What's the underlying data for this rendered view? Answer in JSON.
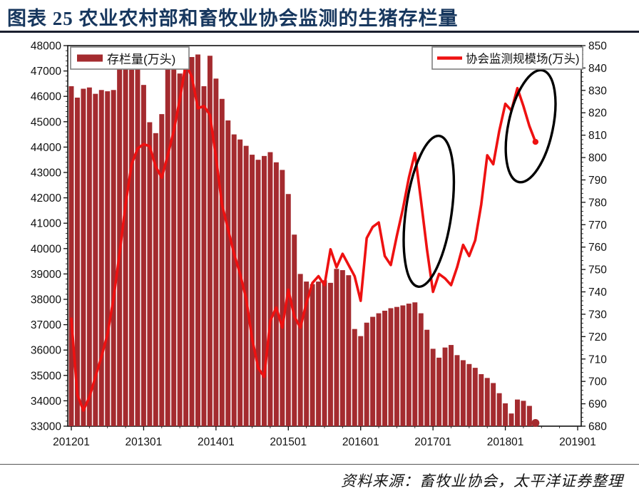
{
  "header": {
    "title": "图表 25 农业农村部和畜牧业协会监测的生猪存栏量"
  },
  "footer": {
    "source": "资料来源：畜牧业协会，太平洋证券整理"
  },
  "colors": {
    "bar": "#a42b2f",
    "line": "#ee1111",
    "title": "#17375e",
    "axis": "#111111",
    "annotation": "#000000",
    "legend_border": "#808080"
  },
  "chart_data": {
    "type": "bar+line",
    "title": "图表 25 农业农村部和畜牧业协会监测的生猪存栏量",
    "legend": [
      {
        "name": "存栏量(万头)",
        "type": "bar",
        "axis": "left"
      },
      {
        "name": "协会监测规模场(万头)",
        "type": "line",
        "axis": "right"
      }
    ],
    "left_axis": {
      "min": 33000,
      "max": 48000,
      "step": 1000,
      "minor_step": 200,
      "ticks": [
        "48000",
        "47000",
        "46000",
        "45000",
        "44000",
        "43000",
        "42000",
        "41000",
        "40000",
        "39000",
        "38000",
        "37000",
        "36000",
        "35000",
        "34000",
        "33000"
      ]
    },
    "right_axis": {
      "min": 680,
      "max": 850,
      "step": 10,
      "minor_step": 2,
      "ticks": [
        "850",
        "840",
        "830",
        "820",
        "810",
        "800",
        "790",
        "780",
        "770",
        "760",
        "750",
        "740",
        "730",
        "720",
        "710",
        "700",
        "690",
        "680"
      ]
    },
    "x_axis": {
      "tick_labels": [
        "201201",
        "201301",
        "201401",
        "201501",
        "201601",
        "201701",
        "201801",
        "201901"
      ],
      "months_span": 84,
      "minor_every_months": 3
    },
    "months": [
      "2012-01",
      "2012-02",
      "2012-03",
      "2012-04",
      "2012-05",
      "2012-06",
      "2012-07",
      "2012-08",
      "2012-09",
      "2012-10",
      "2012-11",
      "2012-12",
      "2013-01",
      "2013-02",
      "2013-03",
      "2013-04",
      "2013-05",
      "2013-06",
      "2013-07",
      "2013-08",
      "2013-09",
      "2013-10",
      "2013-11",
      "2013-12",
      "2014-01",
      "2014-02",
      "2014-03",
      "2014-04",
      "2014-05",
      "2014-06",
      "2014-07",
      "2014-08",
      "2014-09",
      "2014-10",
      "2014-11",
      "2014-12",
      "2015-01",
      "2015-02",
      "2015-03",
      "2015-04",
      "2015-05",
      "2015-06",
      "2015-07",
      "2015-08",
      "2015-09",
      "2015-10",
      "2015-11",
      "2015-12",
      "2016-01",
      "2016-02",
      "2016-03",
      "2016-04",
      "2016-05",
      "2016-06",
      "2016-07",
      "2016-08",
      "2016-09",
      "2016-10",
      "2016-11",
      "2016-12",
      "2017-01",
      "2017-02",
      "2017-03",
      "2017-04",
      "2017-05",
      "2017-06",
      "2017-07",
      "2017-08",
      "2017-09",
      "2017-10",
      "2017-11",
      "2017-12",
      "2018-01",
      "2018-02",
      "2018-03",
      "2018-04",
      "2018-05",
      "2018-06"
    ],
    "series": [
      {
        "name": "存栏量(万头)",
        "type": "bar",
        "axis": "left",
        "values": [
          46400,
          45950,
          46300,
          46350,
          46100,
          46250,
          46200,
          46250,
          47100,
          47300,
          47050,
          47100,
          46450,
          44980,
          44550,
          45300,
          47350,
          47500,
          46900,
          47150,
          47550,
          47650,
          46400,
          47600,
          46700,
          45900,
          45050,
          44500,
          44300,
          44050,
          43700,
          43500,
          43650,
          43800,
          43400,
          43100,
          42150,
          40550,
          39000,
          38700,
          38600,
          38700,
          38750,
          38650,
          39200,
          39150,
          38950,
          36830,
          36550,
          37080,
          37310,
          37450,
          37550,
          37650,
          37700,
          37760,
          37830,
          37880,
          37450,
          36800,
          36050,
          35700,
          36100,
          36200,
          35800,
          35600,
          35450,
          35300,
          35050,
          34900,
          34700,
          34300,
          33900,
          33500,
          34050,
          34000,
          33800,
          33100
        ],
        "last_point_marker": "dot"
      },
      {
        "name": "协会监测规模场(万头)",
        "type": "line",
        "axis": "right",
        "values": [
          728,
          694,
          687,
          693,
          702,
          711,
          721,
          737,
          757,
          779,
          797,
          804,
          806,
          805,
          796,
          791,
          801,
          812,
          826,
          842,
          836,
          822,
          823,
          819,
          800,
          779,
          768,
          757,
          748,
          737,
          719,
          706,
          702,
          727,
          733,
          724,
          741,
          729,
          724,
          735,
          744,
          747,
          743,
          759,
          751,
          757,
          752,
          747,
          736,
          764,
          769,
          771,
          756,
          752,
          765,
          777,
          791,
          802,
          781,
          759,
          740,
          748,
          746,
          743,
          751,
          761,
          756,
          763,
          779,
          801,
          797,
          812,
          824,
          821,
          831,
          823,
          814,
          807
        ],
        "last_point_marker": "dot"
      }
    ],
    "annotations": [
      {
        "shape": "ellipse",
        "month_index": 59.3,
        "value_right_axis": 776,
        "radius_months": 3.8,
        "radius_value": 34,
        "rotate_deg": 8
      },
      {
        "shape": "ellipse",
        "month_index": 76.2,
        "value_right_axis": 814,
        "radius_months": 3.7,
        "radius_value": 25.5,
        "rotate_deg": 12
      }
    ],
    "grid": false,
    "legend_position": "top-left-and-top-right"
  }
}
